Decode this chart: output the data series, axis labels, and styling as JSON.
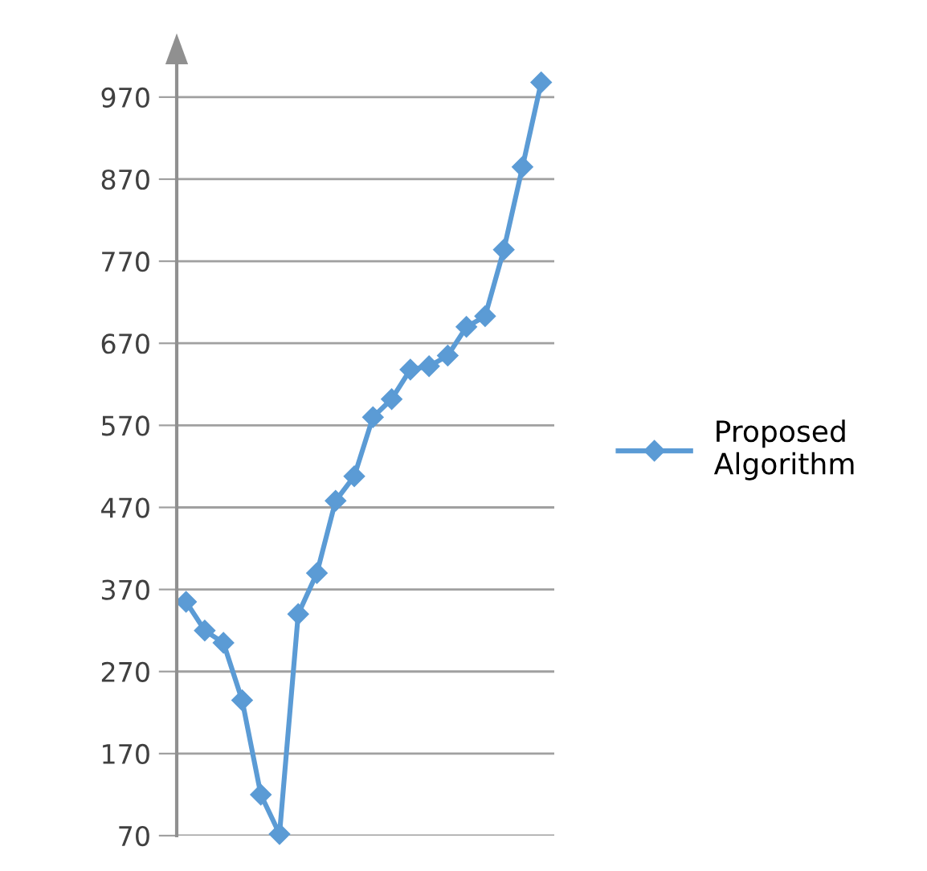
{
  "chart_data": {
    "type": "line",
    "categories": [
      null,
      null,
      null,
      null,
      null,
      null,
      null,
      null,
      null,
      null,
      null,
      null,
      null,
      null,
      null,
      null,
      null,
      null,
      null,
      null
    ],
    "series": [
      {
        "name": "Proposed Algorithm",
        "color": "#5b9bd5",
        "values": [
          355,
          320,
          305,
          235,
          120,
          72,
          340,
          390,
          478,
          508,
          580,
          602,
          638,
          642,
          655,
          690,
          703,
          784,
          885,
          988
        ]
      }
    ],
    "ylim": [
      70,
      1010
    ],
    "yticks": [
      70,
      170,
      270,
      370,
      470,
      570,
      670,
      770,
      870,
      970
    ],
    "grid": "y",
    "legend": "right",
    "marker": "diamond",
    "line_style": "solid"
  }
}
